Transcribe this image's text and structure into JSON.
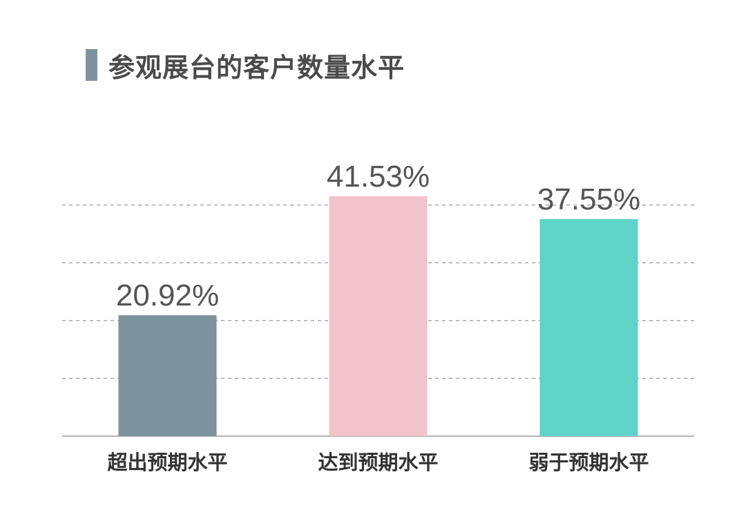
{
  "title": "参观展台的客户数量水平",
  "colors": {
    "title_marker": "#7e939e",
    "gridline": "#a8a8a8",
    "axis": "#999999"
  },
  "chart_data": {
    "type": "bar",
    "title": "参观展台的客户数量水平",
    "categories": [
      "超出预期水平",
      "达到预期水平",
      "弱于预期水平"
    ],
    "values": [
      20.92,
      41.53,
      37.55
    ],
    "value_labels": [
      "20.92%",
      "41.53%",
      "37.55%"
    ],
    "colors": [
      "#7e939e",
      "#f1c4cc",
      "#5fd3c8"
    ],
    "unit": "%",
    "ylim": [
      0,
      50
    ],
    "grid": true,
    "grid_style": "dashed",
    "legend": "none"
  }
}
